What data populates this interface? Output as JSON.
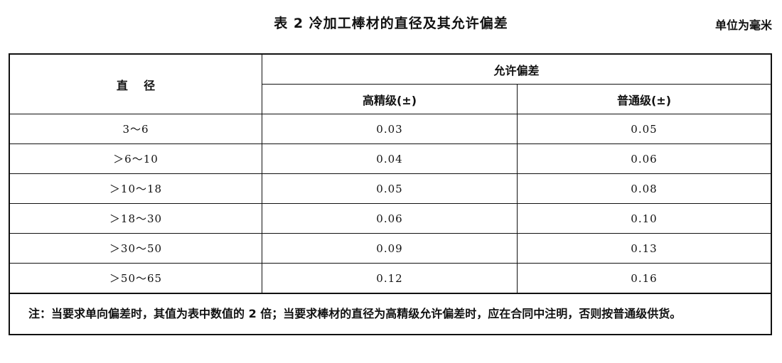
{
  "title": "表 2   冷加工棒材的直径及其允许偏差",
  "unit": "单位为毫米",
  "table": {
    "header": {
      "diameter": "直    径",
      "tolerance": "允许偏差",
      "high_precision": "高精级(±)",
      "normal": "普通级(±)"
    },
    "rows": [
      {
        "diameter": "3～6",
        "high": "0.03",
        "normal": "0.05"
      },
      {
        "diameter": "＞6～10",
        "high": "0.04",
        "normal": "0.06"
      },
      {
        "diameter": "＞10～18",
        "high": "0.05",
        "normal": "0.08"
      },
      {
        "diameter": "＞18～30",
        "high": "0.06",
        "normal": "0.10"
      },
      {
        "diameter": "＞30～50",
        "high": "0.09",
        "normal": "0.13"
      },
      {
        "diameter": "＞50～65",
        "high": "0.12",
        "normal": "0.16"
      }
    ],
    "note_label": "注：",
    "note_text": "当要求单向偏差时，其值为表中数值的 2 倍；当要求棒材的直径为高精级允许偏差时，应在合同中注明，否则按普通级供货。"
  }
}
